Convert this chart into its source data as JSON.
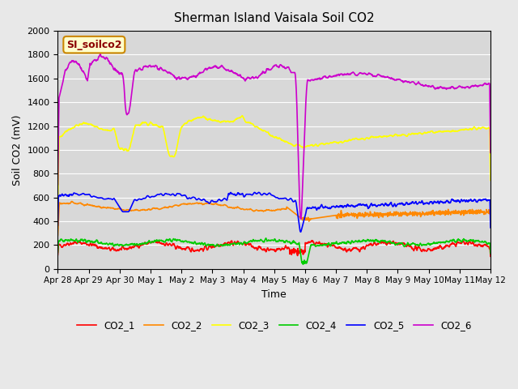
{
  "title": "Sherman Island Vaisala Soil CO2",
  "xlabel": "Time",
  "ylabel": "Soil CO2 (mV)",
  "ylim": [
    0,
    2000
  ],
  "tick_labels": [
    "Apr 28",
    "Apr 29",
    "Apr 30",
    "May 1",
    "May 2",
    "May 3",
    "May 4",
    "May 5",
    "May 6",
    "May 7",
    "May 8",
    "May 9",
    "May 10",
    "May 11",
    "May 12"
  ],
  "legend_labels": [
    "CO2_1",
    "CO2_2",
    "CO2_3",
    "CO2_4",
    "CO2_5",
    "CO2_6"
  ],
  "line_colors": [
    "#ff0000",
    "#ff8800",
    "#ffff00",
    "#00cc00",
    "#0000ff",
    "#cc00cc"
  ],
  "background_color": "#e8e8e8",
  "plot_bg_color": "#d8d8d8",
  "annotation_text": "SI_soilco2",
  "annotation_bg": "#ffffcc",
  "annotation_border": "#cc8800"
}
